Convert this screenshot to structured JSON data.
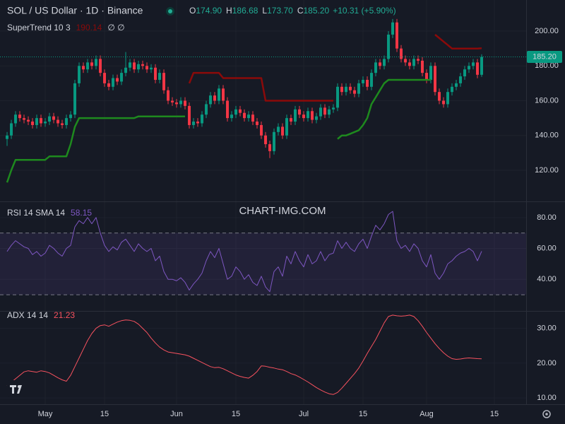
{
  "header": {
    "title": "SOL / US Dollar · 1D · Binance",
    "ohlc": [
      [
        "O",
        "174.90"
      ],
      [
        "H",
        "186.68"
      ],
      [
        "L",
        "173.70"
      ],
      [
        "C",
        "185.20"
      ]
    ],
    "change": "+10.31 (+5.90%)"
  },
  "watermark": "CHART-IMG.COM",
  "x_axis": {
    "xlim": [
      -1.67,
      122.5
    ],
    "xticks": [
      {
        "value": 9,
        "label": "May"
      },
      {
        "value": 23,
        "label": "15"
      },
      {
        "value": 40,
        "label": "Jun"
      },
      {
        "value": 54,
        "label": "15"
      },
      {
        "value": 70,
        "label": "Jul"
      },
      {
        "value": 84,
        "label": "15"
      },
      {
        "value": 99,
        "label": "Aug"
      },
      {
        "value": 115,
        "label": "15"
      }
    ]
  },
  "chart_data": [
    {
      "type": "candlestick",
      "up_color": "#089981",
      "down_color": "#f23645",
      "ylim": [
        102.1,
        217.9
      ],
      "yticks": [
        {
          "value": 120,
          "label": "120.00"
        },
        {
          "value": 140,
          "label": "140.00"
        },
        {
          "value": 160,
          "label": "160.00"
        },
        {
          "value": 180,
          "label": "180.00"
        },
        {
          "value": 200,
          "label": "200.00"
        }
      ],
      "open": [
        138,
        140,
        147,
        152,
        150,
        149,
        148,
        146,
        150,
        147,
        148,
        151,
        149,
        147,
        146,
        150,
        152,
        170,
        180,
        178,
        182,
        180,
        184,
        176,
        170,
        168,
        173,
        171,
        176,
        179,
        182,
        178,
        181,
        180,
        178,
        179,
        172,
        176,
        166,
        160,
        159,
        158,
        160,
        157,
        146,
        148,
        147,
        152,
        158,
        163,
        160,
        167,
        160,
        150,
        152,
        155,
        153,
        150,
        152,
        148,
        146,
        140,
        135,
        131,
        142,
        145,
        140,
        150,
        148,
        155,
        152,
        150,
        154,
        149,
        151,
        156,
        152,
        155,
        156,
        168,
        165,
        168,
        166,
        164,
        170,
        172,
        168,
        176,
        182,
        180,
        184,
        198,
        205,
        190,
        184,
        182,
        180,
        184,
        183,
        176,
        172,
        180,
        165,
        160,
        158,
        165,
        168,
        170,
        174,
        178,
        180,
        182,
        174.9
      ],
      "high": [
        142,
        149,
        154,
        154,
        152,
        151,
        150,
        152,
        152,
        150,
        153,
        153,
        151,
        149,
        152,
        154,
        172,
        182,
        182,
        184,
        184,
        186,
        186,
        178,
        172,
        175,
        175,
        178,
        188,
        184,
        184,
        183,
        183,
        182,
        181,
        181,
        178,
        178,
        168,
        162,
        161,
        162,
        162,
        159,
        150,
        150,
        154,
        160,
        165,
        165,
        169,
        169,
        162,
        154,
        157,
        157,
        155,
        154,
        154,
        150,
        148,
        142,
        137,
        144,
        147,
        147,
        152,
        152,
        157,
        157,
        154,
        156,
        156,
        153,
        158,
        158,
        157,
        158,
        170,
        170,
        170,
        170,
        168,
        172,
        174,
        174,
        178,
        184,
        184,
        186,
        200,
        207,
        207,
        192,
        186,
        184,
        186,
        186,
        185,
        178,
        182,
        182,
        167,
        162,
        167,
        170,
        172,
        176,
        180,
        182,
        184,
        184,
        186.68
      ],
      "low": [
        134,
        138,
        145,
        148,
        147,
        146,
        144,
        144,
        145,
        145,
        146,
        147,
        145,
        144,
        144,
        148,
        150,
        168,
        176,
        176,
        178,
        178,
        174,
        168,
        166,
        166,
        169,
        169,
        174,
        177,
        176,
        176,
        178,
        176,
        176,
        170,
        170,
        164,
        158,
        157,
        156,
        156,
        155,
        144,
        144,
        145,
        145,
        150,
        156,
        158,
        158,
        158,
        148,
        148,
        150,
        151,
        148,
        148,
        146,
        144,
        138,
        133,
        127,
        129,
        140,
        138,
        138,
        146,
        146,
        150,
        148,
        148,
        147,
        147,
        149,
        150,
        150,
        153,
        154,
        163,
        163,
        164,
        162,
        162,
        168,
        166,
        166,
        174,
        178,
        178,
        182,
        196,
        188,
        182,
        180,
        178,
        178,
        181,
        174,
        170,
        170,
        163,
        158,
        156,
        156,
        163,
        166,
        168,
        172,
        176,
        178,
        172.9,
        173.7
      ],
      "close": [
        140,
        147,
        152,
        150,
        149,
        148,
        146,
        150,
        147,
        148,
        151,
        149,
        147,
        146,
        150,
        152,
        170,
        180,
        178,
        182,
        180,
        184,
        176,
        170,
        168,
        173,
        171,
        176,
        179,
        182,
        178,
        181,
        180,
        178,
        179,
        172,
        176,
        166,
        160,
        159,
        158,
        160,
        157,
        146,
        148,
        147,
        152,
        158,
        163,
        160,
        167,
        160,
        150,
        152,
        155,
        153,
        150,
        152,
        148,
        146,
        140,
        135,
        131,
        142,
        145,
        140,
        150,
        148,
        155,
        152,
        150,
        154,
        149,
        151,
        156,
        152,
        155,
        156,
        168,
        165,
        168,
        166,
        164,
        170,
        172,
        168,
        176,
        182,
        180,
        184,
        198,
        205,
        190,
        184,
        182,
        180,
        184,
        183,
        176,
        172,
        180,
        165,
        160,
        158,
        165,
        168,
        170,
        174,
        178,
        180,
        182,
        174.9,
        185.2
      ],
      "last_price": {
        "value": 185.2,
        "label": "185.20"
      },
      "last_price_color": "#089981",
      "supertrend": {
        "name": "SuperTrend 10 3",
        "last_value": 190.14,
        "icons": "∅ ∅",
        "up_color": "#1e8a1e",
        "down_color": "#8b0a0a",
        "up": [
          113,
          120,
          126,
          126,
          126,
          126,
          126,
          126,
          126,
          126,
          128,
          128,
          128,
          128,
          128,
          135,
          145,
          150,
          150,
          150,
          150,
          150,
          150,
          150,
          150,
          150,
          150,
          150,
          150,
          150,
          150,
          151,
          151,
          151,
          151,
          151,
          151,
          151,
          151,
          151,
          151,
          151,
          151,
          null,
          null,
          null,
          null,
          null,
          null,
          null,
          null,
          null,
          null,
          null,
          null,
          null,
          null,
          null,
          null,
          null,
          null,
          null,
          null,
          null,
          null,
          null,
          null,
          null,
          null,
          null,
          null,
          null,
          null,
          null,
          null,
          null,
          null,
          null,
          138,
          140,
          140,
          141,
          142,
          143,
          146,
          150,
          158,
          162,
          166,
          170,
          172,
          172,
          172,
          172,
          172,
          172,
          172,
          172,
          172,
          172,
          172,
          null,
          null,
          null,
          null,
          null,
          null,
          null,
          null,
          null,
          null,
          null,
          null
        ],
        "down": [
          null,
          null,
          null,
          null,
          null,
          null,
          null,
          null,
          null,
          null,
          null,
          null,
          null,
          null,
          null,
          null,
          null,
          null,
          null,
          null,
          null,
          null,
          null,
          null,
          null,
          null,
          null,
          null,
          null,
          null,
          null,
          null,
          null,
          null,
          null,
          null,
          null,
          null,
          null,
          null,
          null,
          null,
          null,
          170,
          176,
          176,
          176,
          176,
          176,
          176,
          176,
          173,
          173,
          173,
          173,
          173,
          173,
          173,
          173,
          173,
          173,
          160,
          160,
          160,
          160,
          160,
          160,
          160,
          160,
          160,
          160,
          160,
          160,
          160,
          160,
          160,
          160,
          160,
          null,
          null,
          null,
          null,
          null,
          null,
          null,
          null,
          null,
          null,
          null,
          null,
          null,
          null,
          null,
          null,
          null,
          null,
          null,
          null,
          null,
          null,
          null,
          198,
          196,
          194,
          192,
          190,
          190,
          190,
          190,
          190,
          190,
          190,
          190.14
        ]
      }
    },
    {
      "type": "line",
      "name": "RSI 14 SMA 14",
      "last_value": 58.15,
      "color": "#7e57c2",
      "band_color": "rgba(126,87,194,0.12)",
      "bands": [
        30,
        70
      ],
      "ylim": [
        19.5,
        90
      ],
      "yticks": [
        {
          "value": 40,
          "label": "40.00"
        },
        {
          "value": 60,
          "label": "60.00"
        },
        {
          "value": 80,
          "label": "80.00"
        }
      ],
      "values": [
        58,
        62,
        65,
        63,
        61,
        60,
        56,
        58,
        55,
        57,
        62,
        60,
        57,
        55,
        60,
        62,
        74,
        78,
        76,
        80,
        76,
        80,
        70,
        62,
        58,
        61,
        59,
        64,
        66,
        62,
        58,
        63,
        60,
        58,
        60,
        52,
        55,
        45,
        40,
        40,
        39,
        41,
        38,
        33,
        37,
        40,
        44,
        52,
        58,
        54,
        60,
        50,
        40,
        42,
        48,
        45,
        40,
        43,
        38,
        36,
        42,
        35,
        32,
        45,
        48,
        42,
        55,
        50,
        58,
        52,
        48,
        56,
        50,
        52,
        58,
        52,
        56,
        57,
        65,
        60,
        64,
        60,
        58,
        63,
        66,
        60,
        68,
        75,
        72,
        76,
        82,
        84,
        65,
        60,
        62,
        58,
        63,
        60,
        52,
        48,
        56,
        44,
        40,
        44,
        50,
        52,
        55,
        57,
        58,
        60,
        58,
        52,
        58.15
      ]
    },
    {
      "type": "line",
      "name": "ADX 14 14",
      "last_value": 21.23,
      "color": "#f7525f",
      "ylim": [
        8.2,
        34.8
      ],
      "yticks": [
        {
          "value": 10,
          "label": "10.00"
        },
        {
          "value": 20,
          "label": "20.00"
        },
        {
          "value": 30,
          "label": "30.00"
        }
      ],
      "values": [
        13.5,
        14.5,
        15.5,
        16.5,
        17.5,
        17.8,
        17.6,
        17.4,
        17.8,
        17.6,
        17.2,
        16.5,
        15.8,
        15.2,
        14.8,
        16.5,
        19,
        21.5,
        24,
        26.5,
        28.5,
        30,
        30.8,
        31,
        30.6,
        31.2,
        31.8,
        32.2,
        32.4,
        32.3,
        32,
        31.2,
        30,
        28.8,
        27.2,
        25.8,
        24.6,
        23.8,
        23.2,
        23,
        22.8,
        22.6,
        22.4,
        22,
        21.4,
        20.8,
        20.2,
        19.6,
        19,
        18.7,
        18.8,
        18.4,
        17.8,
        17.2,
        16.6,
        16.2,
        15.9,
        15.7,
        16.5,
        17.6,
        19.2,
        19.1,
        18.8,
        18.6,
        18.3,
        18.1,
        17.6,
        17,
        16.6,
        16,
        15.3,
        14.6,
        13.8,
        13,
        12.3,
        11.7,
        11.2,
        11,
        11.6,
        12.8,
        14.2,
        15.6,
        17,
        18.6,
        20.6,
        22.8,
        24.8,
        26.8,
        29.2,
        31.6,
        33.4,
        33.8,
        33.6,
        33.5,
        33.6,
        33.8,
        33.4,
        32.2,
        30.6,
        28.8,
        27.2,
        25.6,
        24.2,
        23,
        22,
        21.3,
        21.1,
        21.2,
        21.4,
        21.5,
        21.4,
        21.3,
        21.23
      ]
    }
  ]
}
